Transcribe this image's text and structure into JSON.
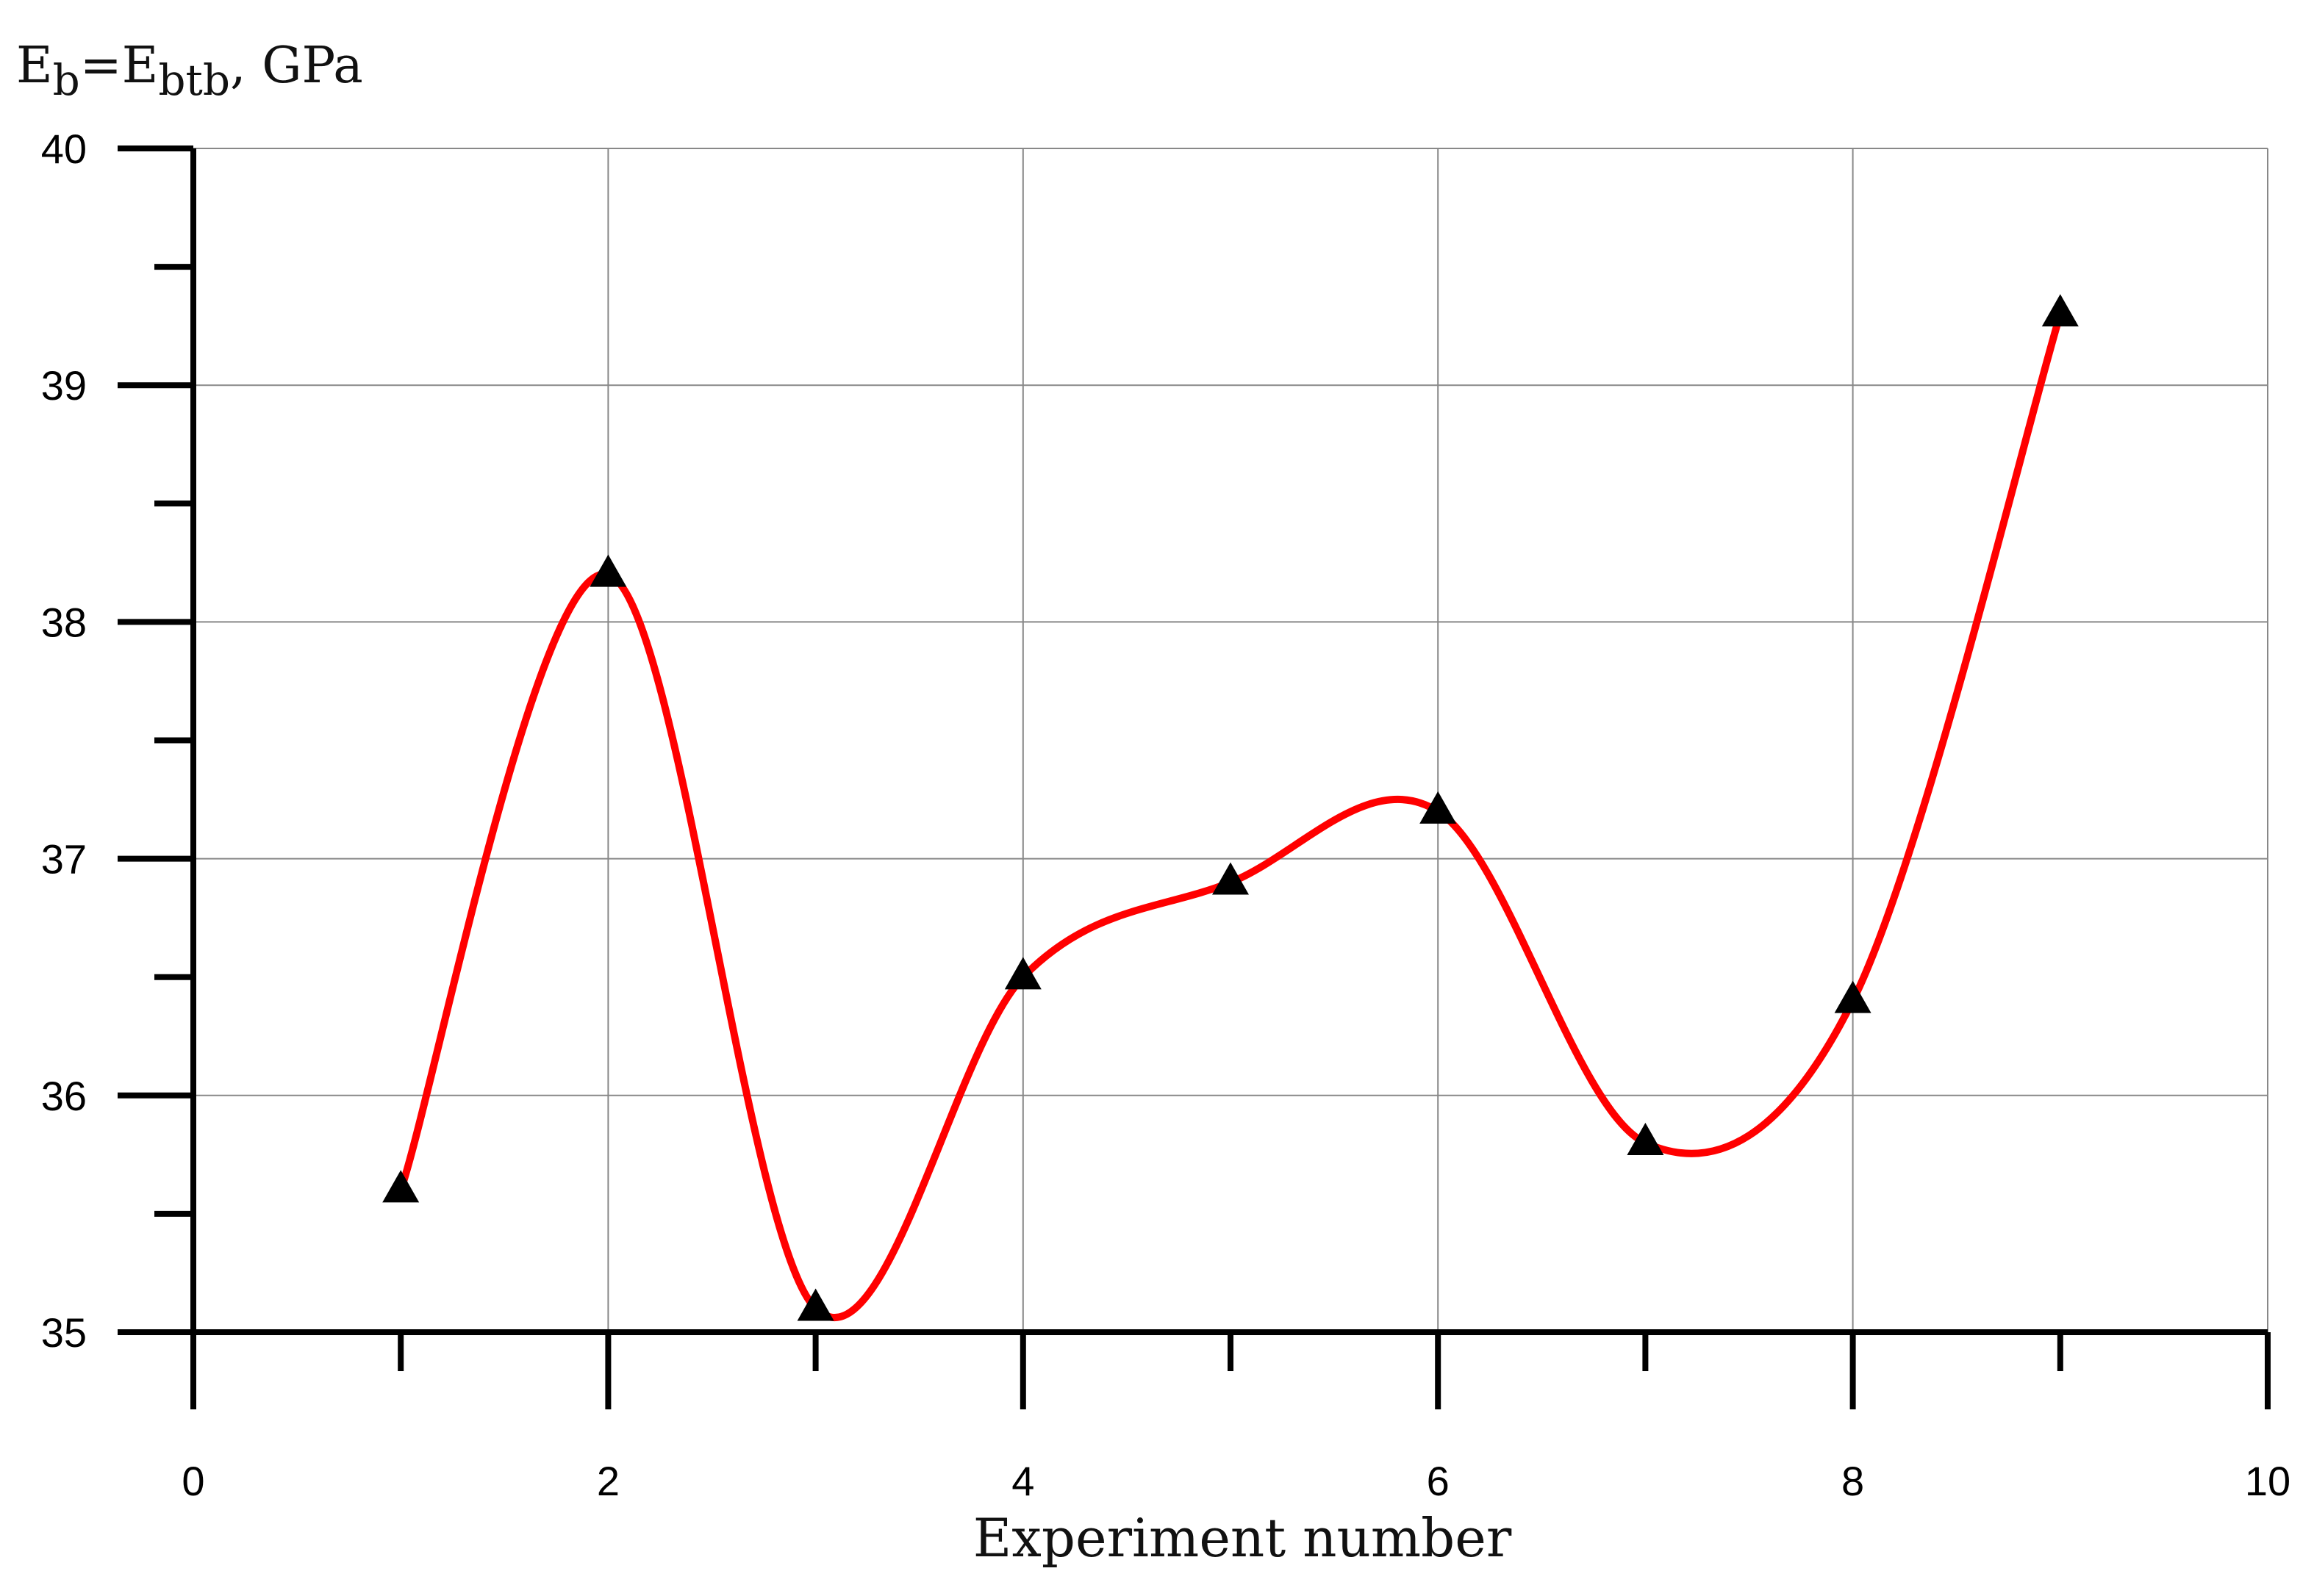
{
  "chart_data": {
    "type": "line",
    "title": "",
    "ylabel": {
      "parts": [
        {
          "text": "E",
          "sub": false
        },
        {
          "text": "b",
          "sub": true
        },
        {
          "text": "=E",
          "sub": false
        },
        {
          "text": "btb",
          "sub": true
        },
        {
          "text": ", GPa",
          "sub": false
        }
      ]
    },
    "xlabel": "Experiment number",
    "xlim": [
      0,
      10
    ],
    "ylim": [
      35,
      40
    ],
    "x_ticks": [
      0,
      2,
      4,
      6,
      8,
      10
    ],
    "x_tick_labels": [
      "0",
      "2",
      "4",
      "6",
      "8",
      "10"
    ],
    "x_minor_ticks": [
      1,
      3,
      5,
      7,
      9
    ],
    "y_ticks": [
      35,
      36,
      37,
      38,
      39,
      40
    ],
    "y_tick_labels": [
      "35",
      "36",
      "37",
      "38",
      "39",
      "40"
    ],
    "y_minor_ticks": [
      35.5,
      36.5,
      37.5,
      38.5,
      39.5
    ],
    "grid": true,
    "curve": "smooth",
    "line_color": "#ff0000",
    "marker": "triangle",
    "marker_color": "#000000",
    "series": [
      {
        "x": [
          1,
          2,
          3,
          4,
          5,
          6,
          7,
          8,
          9
        ],
        "y": [
          35.6,
          38.2,
          35.1,
          36.5,
          36.9,
          37.2,
          35.8,
          36.4,
          39.3
        ]
      }
    ]
  }
}
